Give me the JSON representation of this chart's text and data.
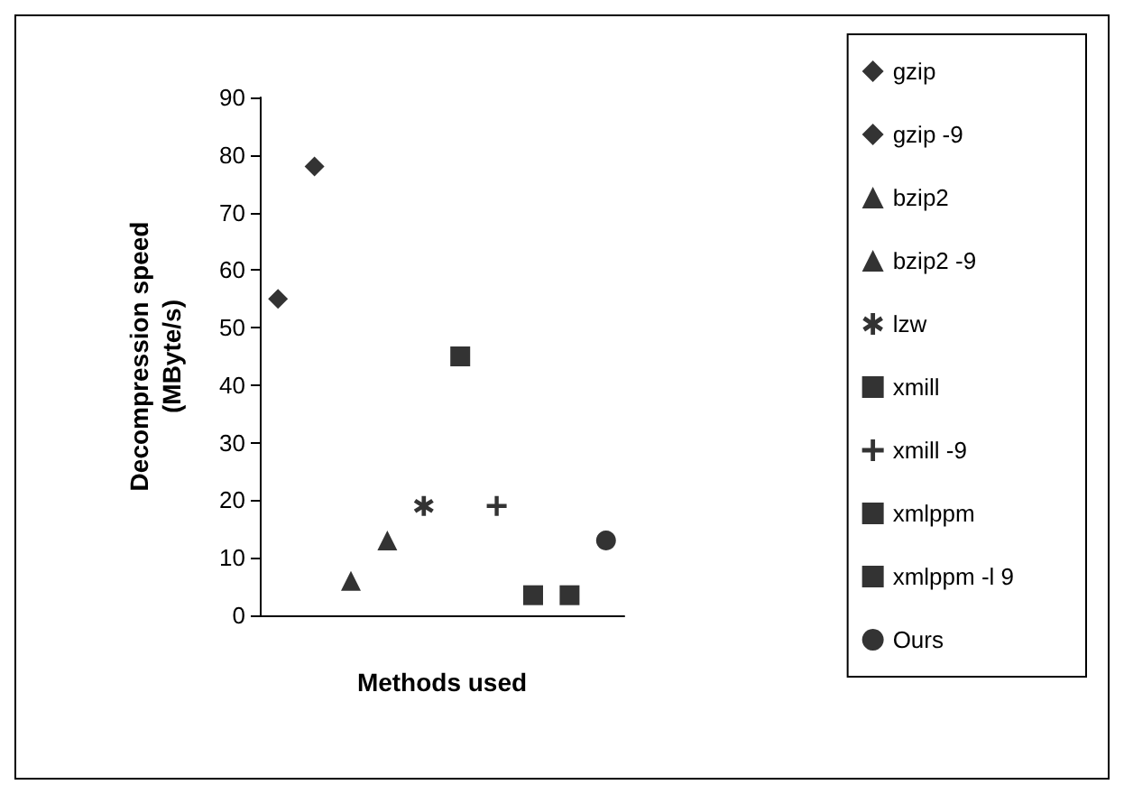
{
  "chart_data": {
    "type": "scatter",
    "xlabel": "Methods used",
    "ylabel": "Decompression speed\n(MByte/s)",
    "categories": [
      null,
      null,
      null,
      null,
      null,
      null,
      null,
      null,
      null,
      null
    ],
    "ylim": [
      0,
      90
    ],
    "yticks": [
      0,
      10,
      20,
      30,
      40,
      50,
      60,
      70,
      80,
      90
    ],
    "grid": false,
    "legend": "right",
    "series": [
      {
        "name": "gzip",
        "color": "#000000",
        "marker": "diamond",
        "values": [
          55,
          null,
          null,
          null,
          null,
          null,
          null,
          null,
          null,
          null
        ]
      },
      {
        "name": "gzip -9",
        "color": "#000000",
        "marker": "diamond",
        "values": [
          null,
          78,
          null,
          null,
          null,
          null,
          null,
          null,
          null,
          null
        ]
      },
      {
        "name": "bzip2",
        "color": "#000000",
        "marker": "triangle",
        "values": [
          null,
          null,
          6,
          null,
          null,
          null,
          null,
          null,
          null,
          null
        ]
      },
      {
        "name": "bzip2 -9",
        "color": "#000000",
        "marker": "triangle",
        "values": [
          null,
          null,
          null,
          13,
          null,
          null,
          null,
          null,
          null,
          null
        ]
      },
      {
        "name": "lzw",
        "color": "#000000",
        "marker": "star",
        "values": [
          null,
          null,
          null,
          null,
          19,
          null,
          null,
          null,
          null,
          null
        ]
      },
      {
        "name": "xmill",
        "color": "#000000",
        "marker": "square",
        "values": [
          null,
          null,
          null,
          null,
          null,
          45,
          null,
          null,
          null,
          null
        ]
      },
      {
        "name": "xmill -9",
        "color": "#000000",
        "marker": "cross",
        "values": [
          null,
          null,
          null,
          null,
          null,
          null,
          19,
          null,
          null,
          null
        ]
      },
      {
        "name": "xmlppm",
        "color": "#000000",
        "marker": "square",
        "values": [
          null,
          null,
          null,
          null,
          null,
          null,
          null,
          3.5,
          null,
          null
        ]
      },
      {
        "name": "xmlppm -l 9",
        "color": "#000000",
        "marker": "square",
        "values": [
          null,
          null,
          null,
          null,
          null,
          null,
          null,
          null,
          3.5,
          null
        ]
      },
      {
        "name": "Ours",
        "color": "#000000",
        "marker": "circle",
        "values": [
          null,
          null,
          null,
          null,
          null,
          null,
          null,
          null,
          null,
          13
        ]
      }
    ]
  }
}
